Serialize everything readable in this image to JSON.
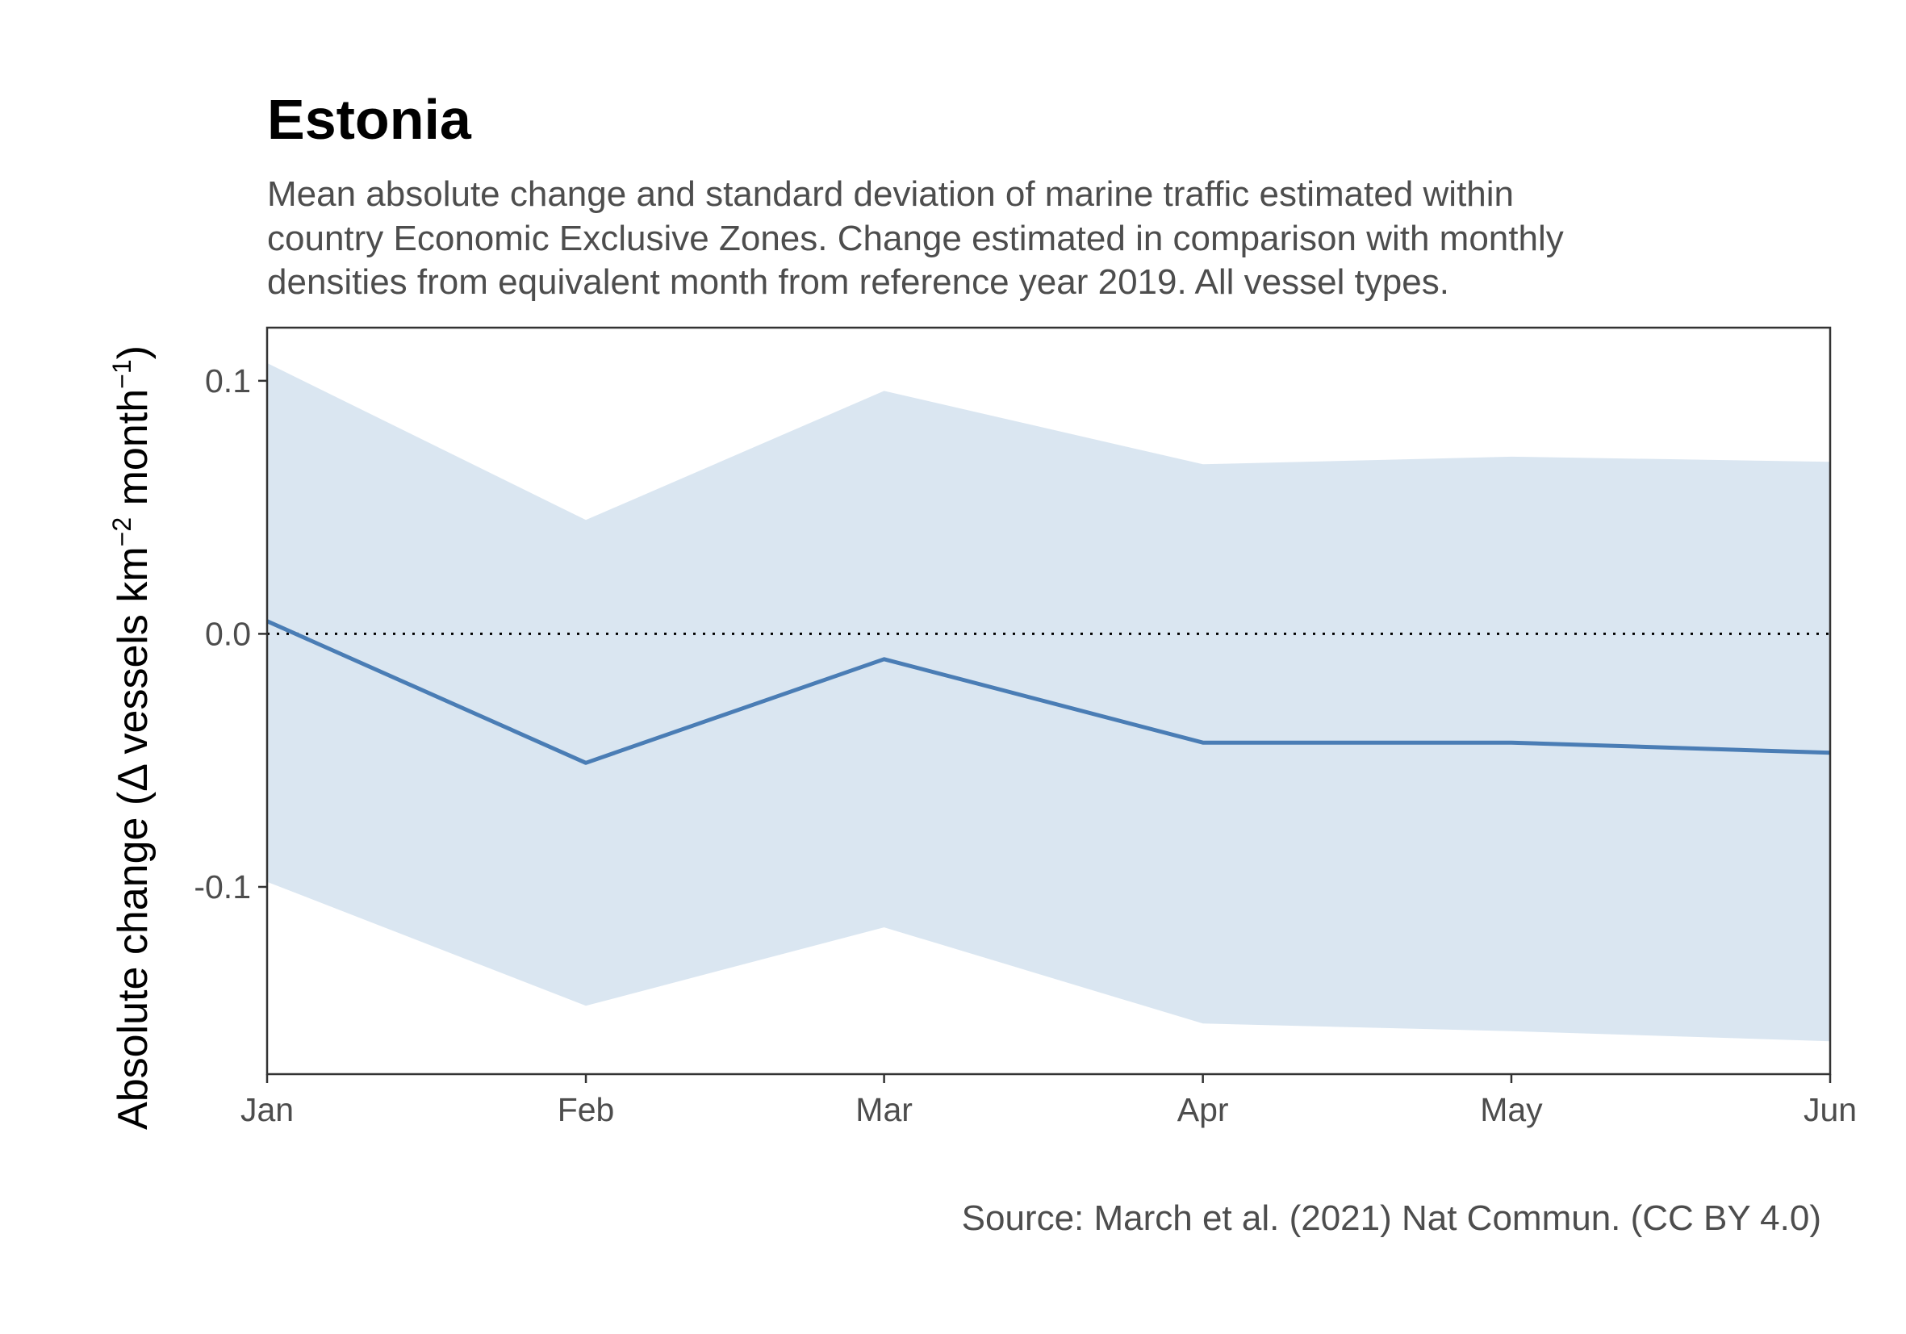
{
  "chart_data": {
    "type": "line",
    "title": "Estonia",
    "subtitle_lines": [
      "Mean absolute change and standard deviation of marine traffic estimated within",
      "country Economic Exclusive Zones. Change estimated in comparison with monthly",
      "densities from equivalent month from reference year 2019. All vessel types."
    ],
    "caption": "Source: March et al. (2021) Nat Commun. (CC BY 4.0)",
    "ylabel": {
      "prefix": "Absolute change (",
      "delta": "Δ",
      "text1": " vessels km",
      "sup1": "−2",
      "text2": " month",
      "sup2": "−1",
      "suffix": ")"
    },
    "xlabel": "",
    "x": [
      "Jan",
      "Feb",
      "Mar",
      "Apr",
      "May",
      "Jun"
    ],
    "x_days": [
      0,
      31,
      60,
      91,
      121,
      152
    ],
    "xlim": [
      0,
      152
    ],
    "ylim": [
      -0.174,
      0.121
    ],
    "yticks": [
      0.1,
      0.0,
      -0.1
    ],
    "ytick_labels": [
      "0.1",
      "0.0",
      "-0.1"
    ],
    "series": [
      {
        "mean": [
          0.005,
          -0.051,
          -0.01,
          -0.043,
          -0.043,
          -0.047
        ],
        "lower": [
          -0.098,
          -0.147,
          -0.116,
          -0.154,
          -0.157,
          -0.161
        ],
        "upper": [
          0.107,
          0.045,
          0.096,
          0.067,
          0.07,
          0.068
        ]
      }
    ],
    "reference_line": 0.0,
    "colors": {
      "line": "#4a7db5",
      "ribbon": "#dae6f1",
      "axis": "#333333",
      "reference": "#000000"
    },
    "grid": false,
    "legend": "none"
  }
}
